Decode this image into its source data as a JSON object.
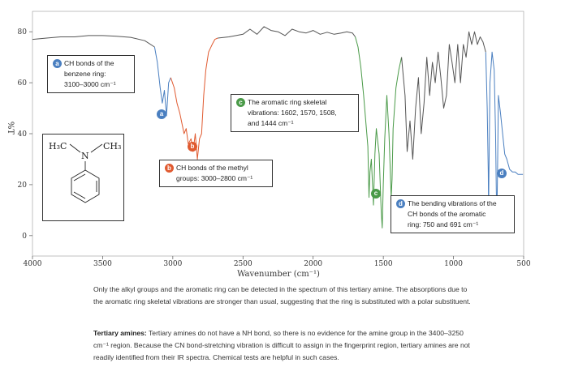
{
  "chart_data": {
    "type": "line",
    "ylabel": "%T",
    "xlabel": "Wavenumber (cm⁻¹)",
    "xlim": [
      4000,
      500
    ],
    "ylim": [
      -8,
      88
    ],
    "x_ticks": [
      "4000",
      "3500",
      "3000",
      "2500",
      "2000",
      "1500",
      "1000",
      "500"
    ],
    "y_ticks": [
      "80",
      "60",
      "40",
      "20",
      "0"
    ],
    "series": [
      {
        "color": "#555555",
        "x": [
          4000,
          3900,
          3800,
          3700,
          3600,
          3500,
          3400,
          3300,
          3200,
          3130
        ],
        "y": [
          77,
          77.5,
          78,
          78,
          78.5,
          78.5,
          78.2,
          77.8,
          76.5,
          74
        ]
      },
      {
        "color": "#4a7fc0",
        "x": [
          3130,
          3110,
          3090,
          3075,
          3060,
          3045,
          3030,
          3015
        ],
        "y": [
          74,
          68,
          58,
          52,
          57,
          47,
          60,
          62
        ]
      },
      {
        "color": "#e05a30",
        "x": [
          3015,
          2990,
          2970,
          2950,
          2935,
          2920,
          2905,
          2890,
          2870,
          2855,
          2840,
          2825,
          2810,
          2795,
          2780,
          2765,
          2745,
          2720,
          2700,
          2680
        ],
        "y": [
          62,
          58,
          52,
          48,
          44,
          40,
          42,
          36,
          38,
          33,
          40,
          30,
          38,
          40,
          55,
          65,
          72,
          75,
          77,
          77.5
        ]
      },
      {
        "color": "#555555",
        "x": [
          2680,
          2600,
          2500,
          2450,
          2400,
          2350,
          2300,
          2250,
          2200,
          2150,
          2100,
          2050,
          2000,
          1950,
          1900,
          1850,
          1800,
          1760,
          1720,
          1700
        ],
        "y": [
          77.5,
          78,
          79,
          81,
          79,
          82,
          80.5,
          80,
          78.5,
          81,
          80,
          79.5,
          80.5,
          79,
          79.8,
          79,
          79.5,
          80,
          79.5,
          78
        ]
      },
      {
        "color": "#4a9a48",
        "x": [
          1700,
          1680,
          1660,
          1640,
          1625,
          1610,
          1602,
          1595,
          1585,
          1570,
          1560,
          1550,
          1530,
          1515,
          1508,
          1500,
          1490,
          1475,
          1460,
          1450,
          1444,
          1438,
          1430,
          1410,
          1390,
          1370
        ],
        "y": [
          78,
          74,
          66,
          55,
          45,
          35,
          15,
          25,
          30,
          12,
          32,
          42,
          32,
          10,
          3,
          20,
          38,
          55,
          40,
          25,
          15,
          22,
          42,
          58,
          65,
          70
        ]
      },
      {
        "color": "#555555",
        "x": [
          1370,
          1345,
          1330,
          1310,
          1290,
          1270,
          1250,
          1230,
          1210,
          1190,
          1170,
          1150,
          1130,
          1110,
          1090,
          1070,
          1050,
          1030,
          1010,
          990,
          970,
          950,
          930,
          910,
          890,
          870,
          850,
          830,
          810,
          790,
          770
        ],
        "y": [
          70,
          55,
          33,
          45,
          30,
          50,
          62,
          40,
          52,
          70,
          55,
          68,
          60,
          72,
          62,
          50,
          55,
          75,
          68,
          60,
          75,
          60,
          75,
          70,
          80,
          75,
          80,
          75,
          78,
          76,
          72
        ]
      },
      {
        "color": "#4a7fc0",
        "x": [
          770,
          760,
          752,
          750,
          748,
          740,
          725,
          710,
          700,
          695,
          691,
          687,
          680,
          665,
          650,
          635,
          620,
          600,
          580,
          560,
          540,
          520,
          505
        ],
        "y": [
          72,
          50,
          25,
          8,
          20,
          60,
          72,
          65,
          40,
          18,
          6,
          22,
          55,
          48,
          40,
          32,
          30,
          26,
          25,
          25,
          24,
          24,
          24
        ]
      }
    ],
    "callouts": [
      {
        "badge": "a",
        "badge_color": "#4a7fc0",
        "lines": [
          "CH bonds of the",
          "benzene ring:",
          "3100–3000 cm⁻¹"
        ]
      },
      {
        "badge": "b",
        "badge_color": "#e05a30",
        "lines": [
          "CH bonds of the methyl",
          "groups: 3000–2800 cm⁻¹"
        ]
      },
      {
        "badge": "c",
        "badge_color": "#4a9a48",
        "lines": [
          "The aromatic ring skeletal",
          "vibrations: 1602, 1570, 1508,",
          "and 1444 cm⁻¹"
        ]
      },
      {
        "badge": "d",
        "badge_color": "#4a7fc0",
        "lines": [
          "The bending vibrations of the",
          "CH bonds of the aromatic",
          "ring: 750 and 691 cm⁻¹"
        ]
      }
    ]
  },
  "structure": {
    "left_group": "H₃C",
    "right_group": "CH₃",
    "atom": "N"
  },
  "caption_1": "Only the alkyl groups and the aromatic ring can be detected in the spectrum of this tertiary amine. The absorptions due to the aromatic ring skeletal vibrations are stronger than usual, suggesting that the ring is substituted with a polar substituent.",
  "caption_2_title": "Tertiary amines:",
  "caption_2_body": "Tertiary amines do not have a NH bond, so there is no evidence for the amine group in the 3400–3250 cm⁻¹ region. Because the CN bond-stretching vibration is difficult to assign in the fingerprint region, tertiary amines are not readily identified from their IR spectra. Chemical tests are helpful in such cases."
}
